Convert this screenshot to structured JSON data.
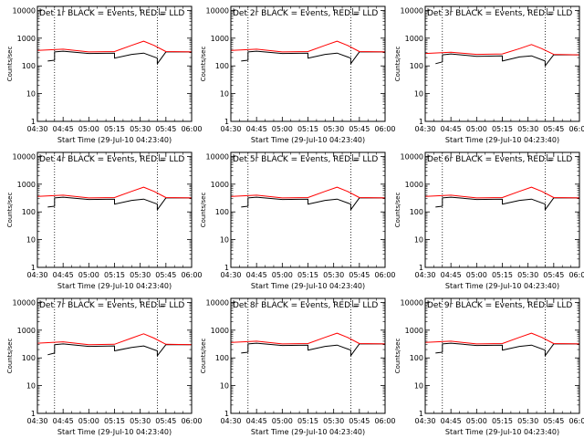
{
  "figure": {
    "xlabel": "Start Time (29-Jul-10 04:23:40)",
    "ylabel": "Counts/sec",
    "x_ticks": [
      "04:30",
      "04:45",
      "05:00",
      "05:15",
      "05:30",
      "05:45",
      "06:00"
    ],
    "y_ticks": [
      "1",
      "10",
      "100",
      "1000",
      "10000"
    ],
    "colors": {
      "events": "#000000",
      "lld": "#ff0000",
      "axes": "#000000"
    }
  },
  "chart_data": [
    {
      "type": "line",
      "title": "Det 1r BLACK = Events, RED = LLD",
      "ylim": [
        1,
        14000
      ],
      "yscale": "log",
      "xlim": [
        "04:30",
        "06:00"
      ],
      "vlines": [
        "04:40",
        "05:40"
      ],
      "series": [
        {
          "x": [
            "04:36",
            "04:40",
            "04:40",
            "04:45",
            "05:00",
            "05:15",
            "05:15",
            "05:25",
            "05:32",
            "05:40",
            "05:40",
            "05:45",
            "06:00"
          ],
          "y": [
            150,
            160,
            320,
            340,
            280,
            290,
            190,
            260,
            290,
            190,
            120,
            320,
            320
          ]
        },
        {
          "x": [
            "04:30",
            "04:45",
            "05:00",
            "05:15",
            "05:25",
            "05:32",
            "05:38",
            "05:45",
            "06:00"
          ],
          "y": [
            360,
            400,
            320,
            330,
            550,
            780,
            550,
            330,
            320
          ]
        }
      ]
    },
    {
      "type": "line",
      "title": "Det 2r BLACK = Events, RED = LLD",
      "ylim": [
        1,
        14000
      ],
      "yscale": "log",
      "xlim": [
        "04:30",
        "06:00"
      ],
      "vlines": [
        "04:40",
        "05:40"
      ],
      "series": [
        {
          "x": [
            "04:36",
            "04:40",
            "04:40",
            "04:45",
            "05:00",
            "05:15",
            "05:15",
            "05:25",
            "05:32",
            "05:40",
            "05:40",
            "05:45",
            "06:00"
          ],
          "y": [
            150,
            160,
            320,
            340,
            280,
            290,
            190,
            260,
            290,
            190,
            120,
            320,
            320
          ]
        },
        {
          "x": [
            "04:30",
            "04:45",
            "05:00",
            "05:15",
            "05:25",
            "05:32",
            "05:38",
            "05:45",
            "06:00"
          ],
          "y": [
            360,
            400,
            320,
            330,
            550,
            780,
            550,
            330,
            320
          ]
        }
      ]
    },
    {
      "type": "line",
      "title": "Det 3r BLACK = Events, RED = LLD",
      "ylim": [
        1,
        14000
      ],
      "yscale": "log",
      "xlim": [
        "04:30",
        "06:00"
      ],
      "vlines": [
        "04:40",
        "05:40"
      ],
      "series": [
        {
          "x": [
            "04:36",
            "04:40",
            "04:40",
            "04:45",
            "05:00",
            "05:15",
            "05:15",
            "05:25",
            "05:32",
            "05:40",
            "05:40",
            "05:45",
            "06:00"
          ],
          "y": [
            120,
            140,
            250,
            270,
            220,
            230,
            150,
            210,
            230,
            150,
            100,
            250,
            250
          ]
        },
        {
          "x": [
            "04:30",
            "04:45",
            "05:00",
            "05:15",
            "05:25",
            "05:32",
            "05:38",
            "05:45",
            "06:00"
          ],
          "y": [
            280,
            310,
            260,
            270,
            420,
            590,
            420,
            260,
            250
          ]
        }
      ]
    },
    {
      "type": "line",
      "title": "Det 4r BLACK = Events, RED = LLD",
      "ylim": [
        1,
        14000
      ],
      "yscale": "log",
      "xlim": [
        "04:30",
        "06:00"
      ],
      "vlines": [
        "04:40",
        "05:40"
      ],
      "series": [
        {
          "x": [
            "04:36",
            "04:40",
            "04:40",
            "04:45",
            "05:00",
            "05:15",
            "05:15",
            "05:25",
            "05:32",
            "05:40",
            "05:40",
            "05:45",
            "06:00"
          ],
          "y": [
            150,
            160,
            320,
            340,
            280,
            290,
            190,
            260,
            290,
            190,
            120,
            320,
            320
          ]
        },
        {
          "x": [
            "04:30",
            "04:45",
            "05:00",
            "05:15",
            "05:25",
            "05:32",
            "05:38",
            "05:45",
            "06:00"
          ],
          "y": [
            360,
            400,
            320,
            330,
            550,
            780,
            550,
            330,
            320
          ]
        }
      ]
    },
    {
      "type": "line",
      "title": "Det 5r BLACK = Events, RED = LLD",
      "ylim": [
        1,
        14000
      ],
      "yscale": "log",
      "xlim": [
        "04:30",
        "06:00"
      ],
      "vlines": [
        "04:40",
        "05:40"
      ],
      "series": [
        {
          "x": [
            "04:36",
            "04:40",
            "04:40",
            "04:45",
            "05:00",
            "05:15",
            "05:15",
            "05:25",
            "05:32",
            "05:40",
            "05:40",
            "05:45",
            "06:00"
          ],
          "y": [
            150,
            160,
            320,
            340,
            280,
            290,
            190,
            260,
            290,
            190,
            120,
            320,
            320
          ]
        },
        {
          "x": [
            "04:30",
            "04:45",
            "05:00",
            "05:15",
            "05:25",
            "05:32",
            "05:38",
            "05:45",
            "06:00"
          ],
          "y": [
            360,
            400,
            320,
            330,
            550,
            780,
            550,
            330,
            320
          ]
        }
      ]
    },
    {
      "type": "line",
      "title": "Det 6r BLACK = Events, RED = LLD",
      "ylim": [
        1,
        14000
      ],
      "yscale": "log",
      "xlim": [
        "04:30",
        "06:00"
      ],
      "vlines": [
        "04:40",
        "05:40"
      ],
      "series": [
        {
          "x": [
            "04:36",
            "04:40",
            "04:40",
            "04:45",
            "05:00",
            "05:15",
            "05:15",
            "05:25",
            "05:32",
            "05:40",
            "05:40",
            "05:45",
            "06:00"
          ],
          "y": [
            150,
            160,
            320,
            340,
            280,
            290,
            190,
            260,
            290,
            190,
            120,
            320,
            320
          ]
        },
        {
          "x": [
            "04:30",
            "04:45",
            "05:00",
            "05:15",
            "05:25",
            "05:32",
            "05:38",
            "05:45",
            "06:00"
          ],
          "y": [
            360,
            400,
            320,
            330,
            550,
            780,
            550,
            330,
            320
          ]
        }
      ]
    },
    {
      "type": "line",
      "title": "Det 7r BLACK = Events, RED = LLD",
      "ylim": [
        1,
        14000
      ],
      "yscale": "log",
      "xlim": [
        "04:30",
        "06:00"
      ],
      "vlines": [
        "04:40",
        "05:40"
      ],
      "series": [
        {
          "x": [
            "04:36",
            "04:40",
            "04:40",
            "04:45",
            "05:00",
            "05:15",
            "05:15",
            "05:25",
            "05:32",
            "05:40",
            "05:40",
            "05:45",
            "06:00"
          ],
          "y": [
            130,
            150,
            300,
            320,
            260,
            270,
            180,
            240,
            270,
            180,
            120,
            300,
            300
          ]
        },
        {
          "x": [
            "04:30",
            "04:45",
            "05:00",
            "05:15",
            "05:25",
            "05:32",
            "05:38",
            "05:45",
            "06:00"
          ],
          "y": [
            340,
            380,
            300,
            310,
            520,
            740,
            520,
            310,
            300
          ]
        }
      ]
    },
    {
      "type": "line",
      "title": "Det 8r BLACK = Events, RED = LLD",
      "ylim": [
        1,
        14000
      ],
      "yscale": "log",
      "xlim": [
        "04:30",
        "06:00"
      ],
      "vlines": [
        "04:40",
        "05:40"
      ],
      "series": [
        {
          "x": [
            "04:36",
            "04:40",
            "04:40",
            "04:45",
            "05:00",
            "05:15",
            "05:15",
            "05:25",
            "05:32",
            "05:40",
            "05:40",
            "05:45",
            "06:00"
          ],
          "y": [
            150,
            160,
            320,
            340,
            280,
            290,
            190,
            260,
            290,
            190,
            120,
            320,
            320
          ]
        },
        {
          "x": [
            "04:30",
            "04:45",
            "05:00",
            "05:15",
            "05:25",
            "05:32",
            "05:38",
            "05:45",
            "06:00"
          ],
          "y": [
            360,
            400,
            320,
            330,
            550,
            780,
            550,
            330,
            320
          ]
        }
      ]
    },
    {
      "type": "line",
      "title": "Det 9r BLACK = Events, RED = LLD",
      "ylim": [
        1,
        14000
      ],
      "yscale": "log",
      "xlim": [
        "04:30",
        "06:00"
      ],
      "vlines": [
        "04:40",
        "05:40"
      ],
      "series": [
        {
          "x": [
            "04:36",
            "04:40",
            "04:40",
            "04:45",
            "05:00",
            "05:15",
            "05:15",
            "05:25",
            "05:32",
            "05:40",
            "05:40",
            "05:45",
            "06:00"
          ],
          "y": [
            150,
            160,
            320,
            340,
            280,
            290,
            190,
            260,
            290,
            190,
            120,
            320,
            320
          ]
        },
        {
          "x": [
            "04:30",
            "04:45",
            "05:00",
            "05:15",
            "05:25",
            "05:32",
            "05:38",
            "05:45",
            "06:00"
          ],
          "y": [
            360,
            400,
            320,
            330,
            550,
            780,
            550,
            330,
            320
          ]
        }
      ]
    }
  ]
}
